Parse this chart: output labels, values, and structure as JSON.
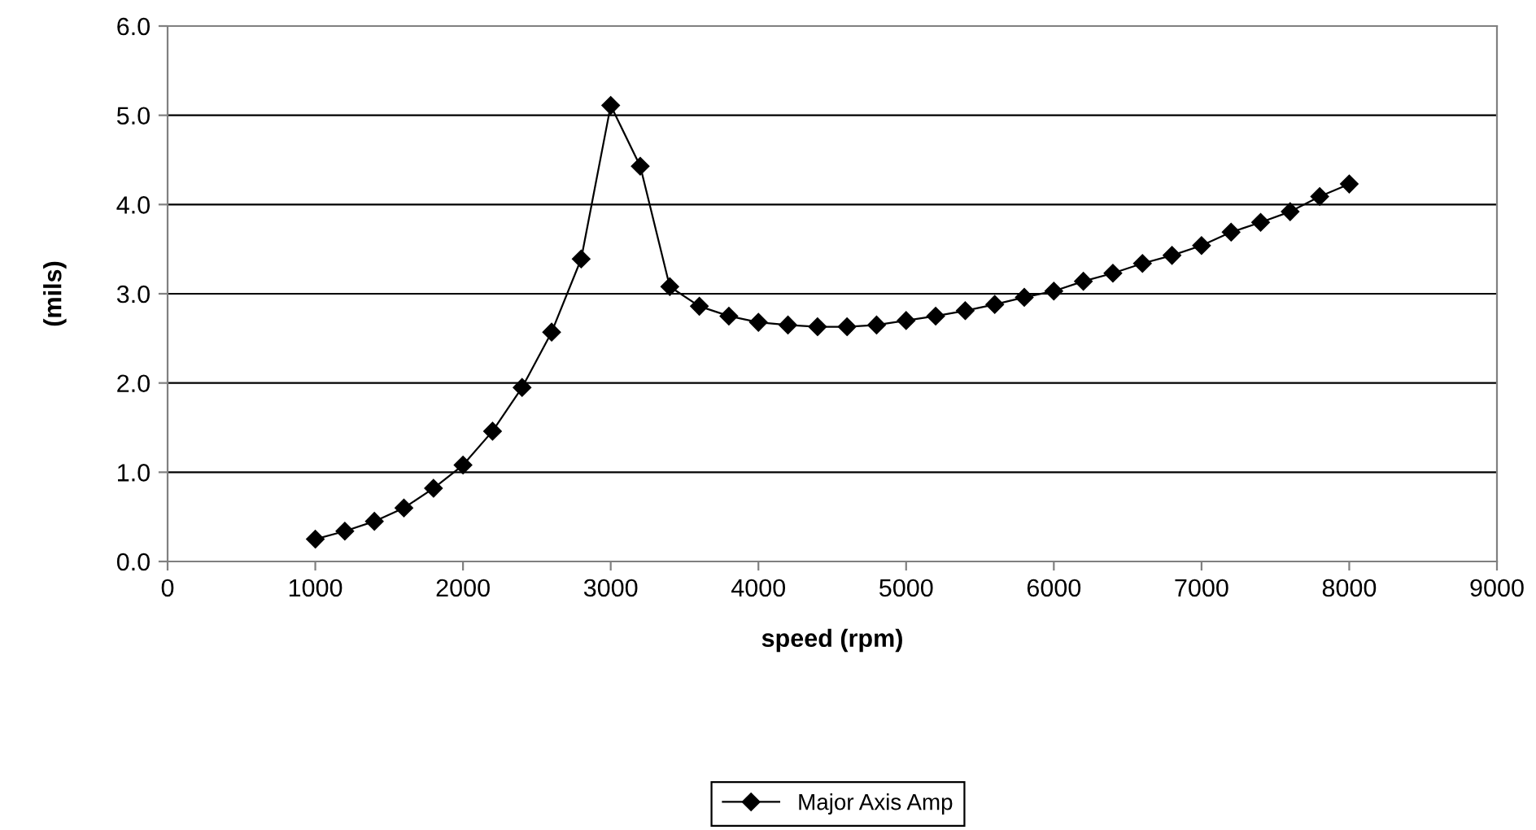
{
  "chart_data": {
    "type": "line",
    "xlabel": "speed (rpm)",
    "ylabel": "(mils)",
    "xlim": [
      0,
      9000
    ],
    "xticks": [
      0,
      1000,
      2000,
      3000,
      4000,
      5000,
      6000,
      7000,
      8000,
      9000
    ],
    "ylim": [
      0,
      6
    ],
    "yticks": [
      {
        "value": 0,
        "label": "0.0"
      },
      {
        "value": 1,
        "label": "1.0"
      },
      {
        "value": 2,
        "label": "2.0"
      },
      {
        "value": 3,
        "label": "3.0"
      },
      {
        "value": 4,
        "label": "4.0"
      },
      {
        "value": 5,
        "label": "5.0"
      },
      {
        "value": 6,
        "label": "6.0"
      }
    ],
    "grid": "y",
    "legend": "bottom",
    "marker": "diamond",
    "line_style": "solid",
    "x": [
      1000,
      1200,
      1400,
      1600,
      1800,
      2000,
      2200,
      2400,
      2600,
      2800,
      3000,
      3200,
      3400,
      3600,
      3800,
      4000,
      4200,
      4400,
      4600,
      4800,
      5000,
      5200,
      5400,
      5600,
      5800,
      6000,
      6200,
      6400,
      6600,
      6800,
      7000,
      7200,
      7400,
      7600,
      7800,
      8000
    ],
    "series": [
      {
        "name": "Major Axis Amp",
        "color": "#000000",
        "values": [
          0.25,
          0.34,
          0.45,
          0.6,
          0.82,
          1.08,
          1.46,
          1.95,
          2.57,
          3.39,
          5.11,
          4.43,
          3.08,
          2.86,
          2.75,
          2.68,
          2.65,
          2.63,
          2.63,
          2.65,
          2.7,
          2.75,
          2.81,
          2.88,
          2.96,
          3.03,
          3.14,
          3.23,
          3.34,
          3.43,
          3.54,
          3.69,
          3.8,
          3.92,
          4.09,
          4.23
        ]
      }
    ]
  }
}
